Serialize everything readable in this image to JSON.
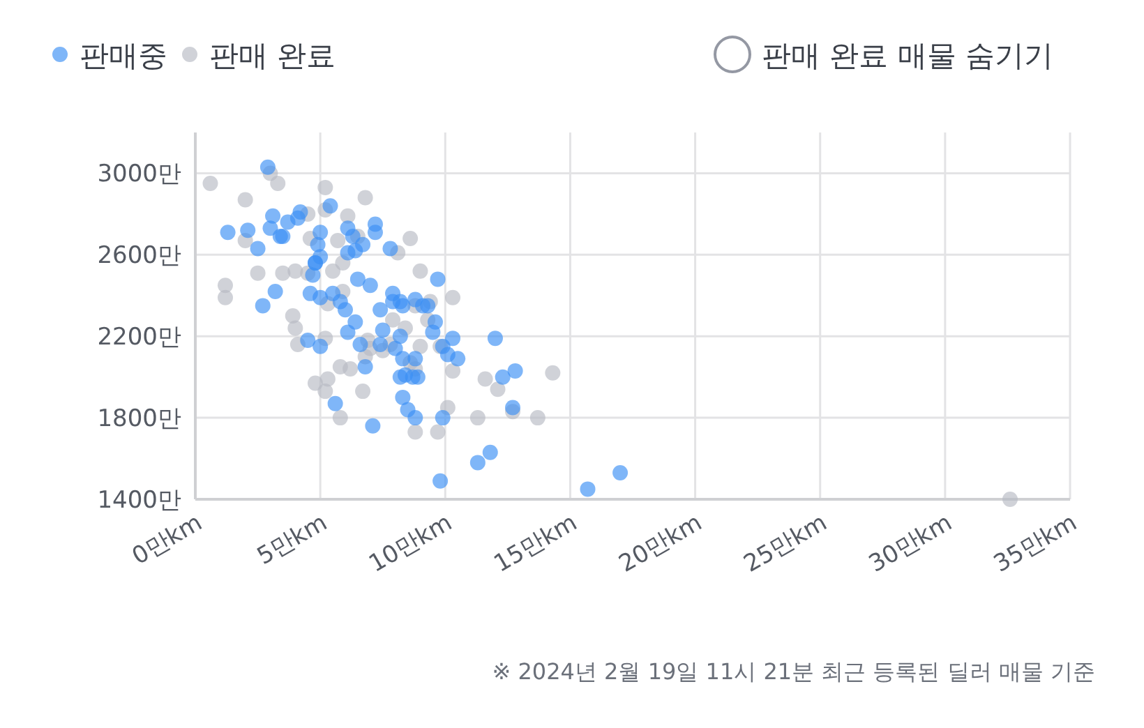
{
  "chart_data": {
    "type": "scatter",
    "legend": "top left",
    "grid": true,
    "marker": "circle",
    "xlim": [
      0,
      35
    ],
    "ylim": [
      1400,
      3200
    ],
    "xticks": [
      {
        "value": 0,
        "label": "0만km"
      },
      {
        "value": 5,
        "label": "5만km"
      },
      {
        "value": 10,
        "label": "10만km"
      },
      {
        "value": 15,
        "label": "15만km"
      },
      {
        "value": 20,
        "label": "20만km"
      },
      {
        "value": 25,
        "label": "25만km"
      },
      {
        "value": 30,
        "label": "30만km"
      },
      {
        "value": 35,
        "label": "35만km"
      }
    ],
    "yticks": [
      {
        "value": 1400,
        "label": "1400만"
      },
      {
        "value": 1800,
        "label": "1800만"
      },
      {
        "value": 2200,
        "label": "2200만"
      },
      {
        "value": 2600,
        "label": "2600만"
      },
      {
        "value": 3000,
        "label": "3000만"
      }
    ],
    "annotations": [
      "판매 완료 매물 숨기기",
      "※ 2024년 2월 19일 11시 21분 최근 등록된 딜러 매물 기준"
    ],
    "series": [
      {
        "name": "판매 완료",
        "color": "#b7bac3",
        "x": [
          0.6,
          2.0,
          3.3,
          3.0,
          5.2,
          6.8,
          4.5,
          5.2,
          1.2,
          1.2,
          2.0,
          2.5,
          3.5,
          4.5,
          4.0,
          3.9,
          5.3,
          5.5,
          4.6,
          5.7,
          6.1,
          5.9,
          5.9,
          4.1,
          5.2,
          5.3,
          4.8,
          5.2,
          5.8,
          5.8,
          6.2,
          6.8,
          7.0,
          6.7,
          6.9,
          7.5,
          7.9,
          9.0,
          8.6,
          8.8,
          9.4,
          9.3,
          9.0,
          8.6,
          8.8,
          8.8,
          9.7,
          10.1,
          10.3,
          10.3,
          11.3,
          11.6,
          12.1,
          12.7,
          13.7,
          14.3,
          32.6,
          9.8,
          7.8,
          8.4,
          6.5,
          8.1,
          4.0
        ],
        "values": [
          2950,
          2870,
          2950,
          3000,
          2930,
          2880,
          2800,
          2820,
          2450,
          2390,
          2670,
          2510,
          2510,
          2510,
          2520,
          2300,
          2360,
          2520,
          2680,
          2670,
          2790,
          2560,
          2420,
          2160,
          2190,
          1990,
          1970,
          1930,
          1800,
          2050,
          2040,
          2100,
          2140,
          1930,
          2180,
          2130,
          2280,
          2520,
          2680,
          2350,
          2370,
          2280,
          2150,
          2070,
          2040,
          1730,
          1730,
          1850,
          2390,
          2030,
          1800,
          1990,
          1940,
          1830,
          1800,
          2020,
          1400,
          2150,
          2160,
          2240,
          2690,
          2610,
          2240
        ]
      },
      {
        "name": "판매중",
        "color": "#3b8ff5",
        "x": [
          2.9,
          1.3,
          2.1,
          3.0,
          3.4,
          2.5,
          2.7,
          3.2,
          4.1,
          4.2,
          3.7,
          4.9,
          4.8,
          4.7,
          4.6,
          5.0,
          5.4,
          6.1,
          6.3,
          6.4,
          6.7,
          7.2,
          7.2,
          7.8,
          6.5,
          7.0,
          5.5,
          5.8,
          6.4,
          6.0,
          6.1,
          6.6,
          6.8,
          7.4,
          7.5,
          7.9,
          8.2,
          8.3,
          8.2,
          8.0,
          8.3,
          8.4,
          8.2,
          8.7,
          8.9,
          8.8,
          9.1,
          8.8,
          9.3,
          9.7,
          9.6,
          9.5,
          9.9,
          10.1,
          10.5,
          10.3,
          9.9,
          8.3,
          8.5,
          8.8,
          7.1,
          5.6,
          5.0,
          4.5,
          9.8,
          11.3,
          11.8,
          12.0,
          12.3,
          12.8,
          12.7,
          15.7,
          17.0,
          5.0,
          4.8,
          5.0,
          3.5,
          3.1,
          7.9,
          6.1,
          7.4
        ],
        "values": [
          3030,
          2710,
          2720,
          2730,
          2690,
          2630,
          2350,
          2420,
          2780,
          2810,
          2760,
          2650,
          2560,
          2500,
          2410,
          2390,
          2840,
          2730,
          2690,
          2620,
          2650,
          2750,
          2710,
          2630,
          2480,
          2450,
          2410,
          2370,
          2270,
          2330,
          2220,
          2160,
          2050,
          2160,
          2230,
          2410,
          2370,
          2350,
          2200,
          2140,
          2090,
          2010,
          2000,
          2000,
          2000,
          2090,
          2350,
          2380,
          2350,
          2480,
          2270,
          2220,
          2150,
          2110,
          2090,
          2190,
          1800,
          1900,
          1840,
          1800,
          1760,
          1870,
          2150,
          2180,
          1490,
          1580,
          1630,
          2190,
          2000,
          2030,
          1850,
          1450,
          1530,
          2590,
          2560,
          2710,
          2690,
          2790,
          2370,
          2610,
          2330
        ]
      }
    ]
  }
}
